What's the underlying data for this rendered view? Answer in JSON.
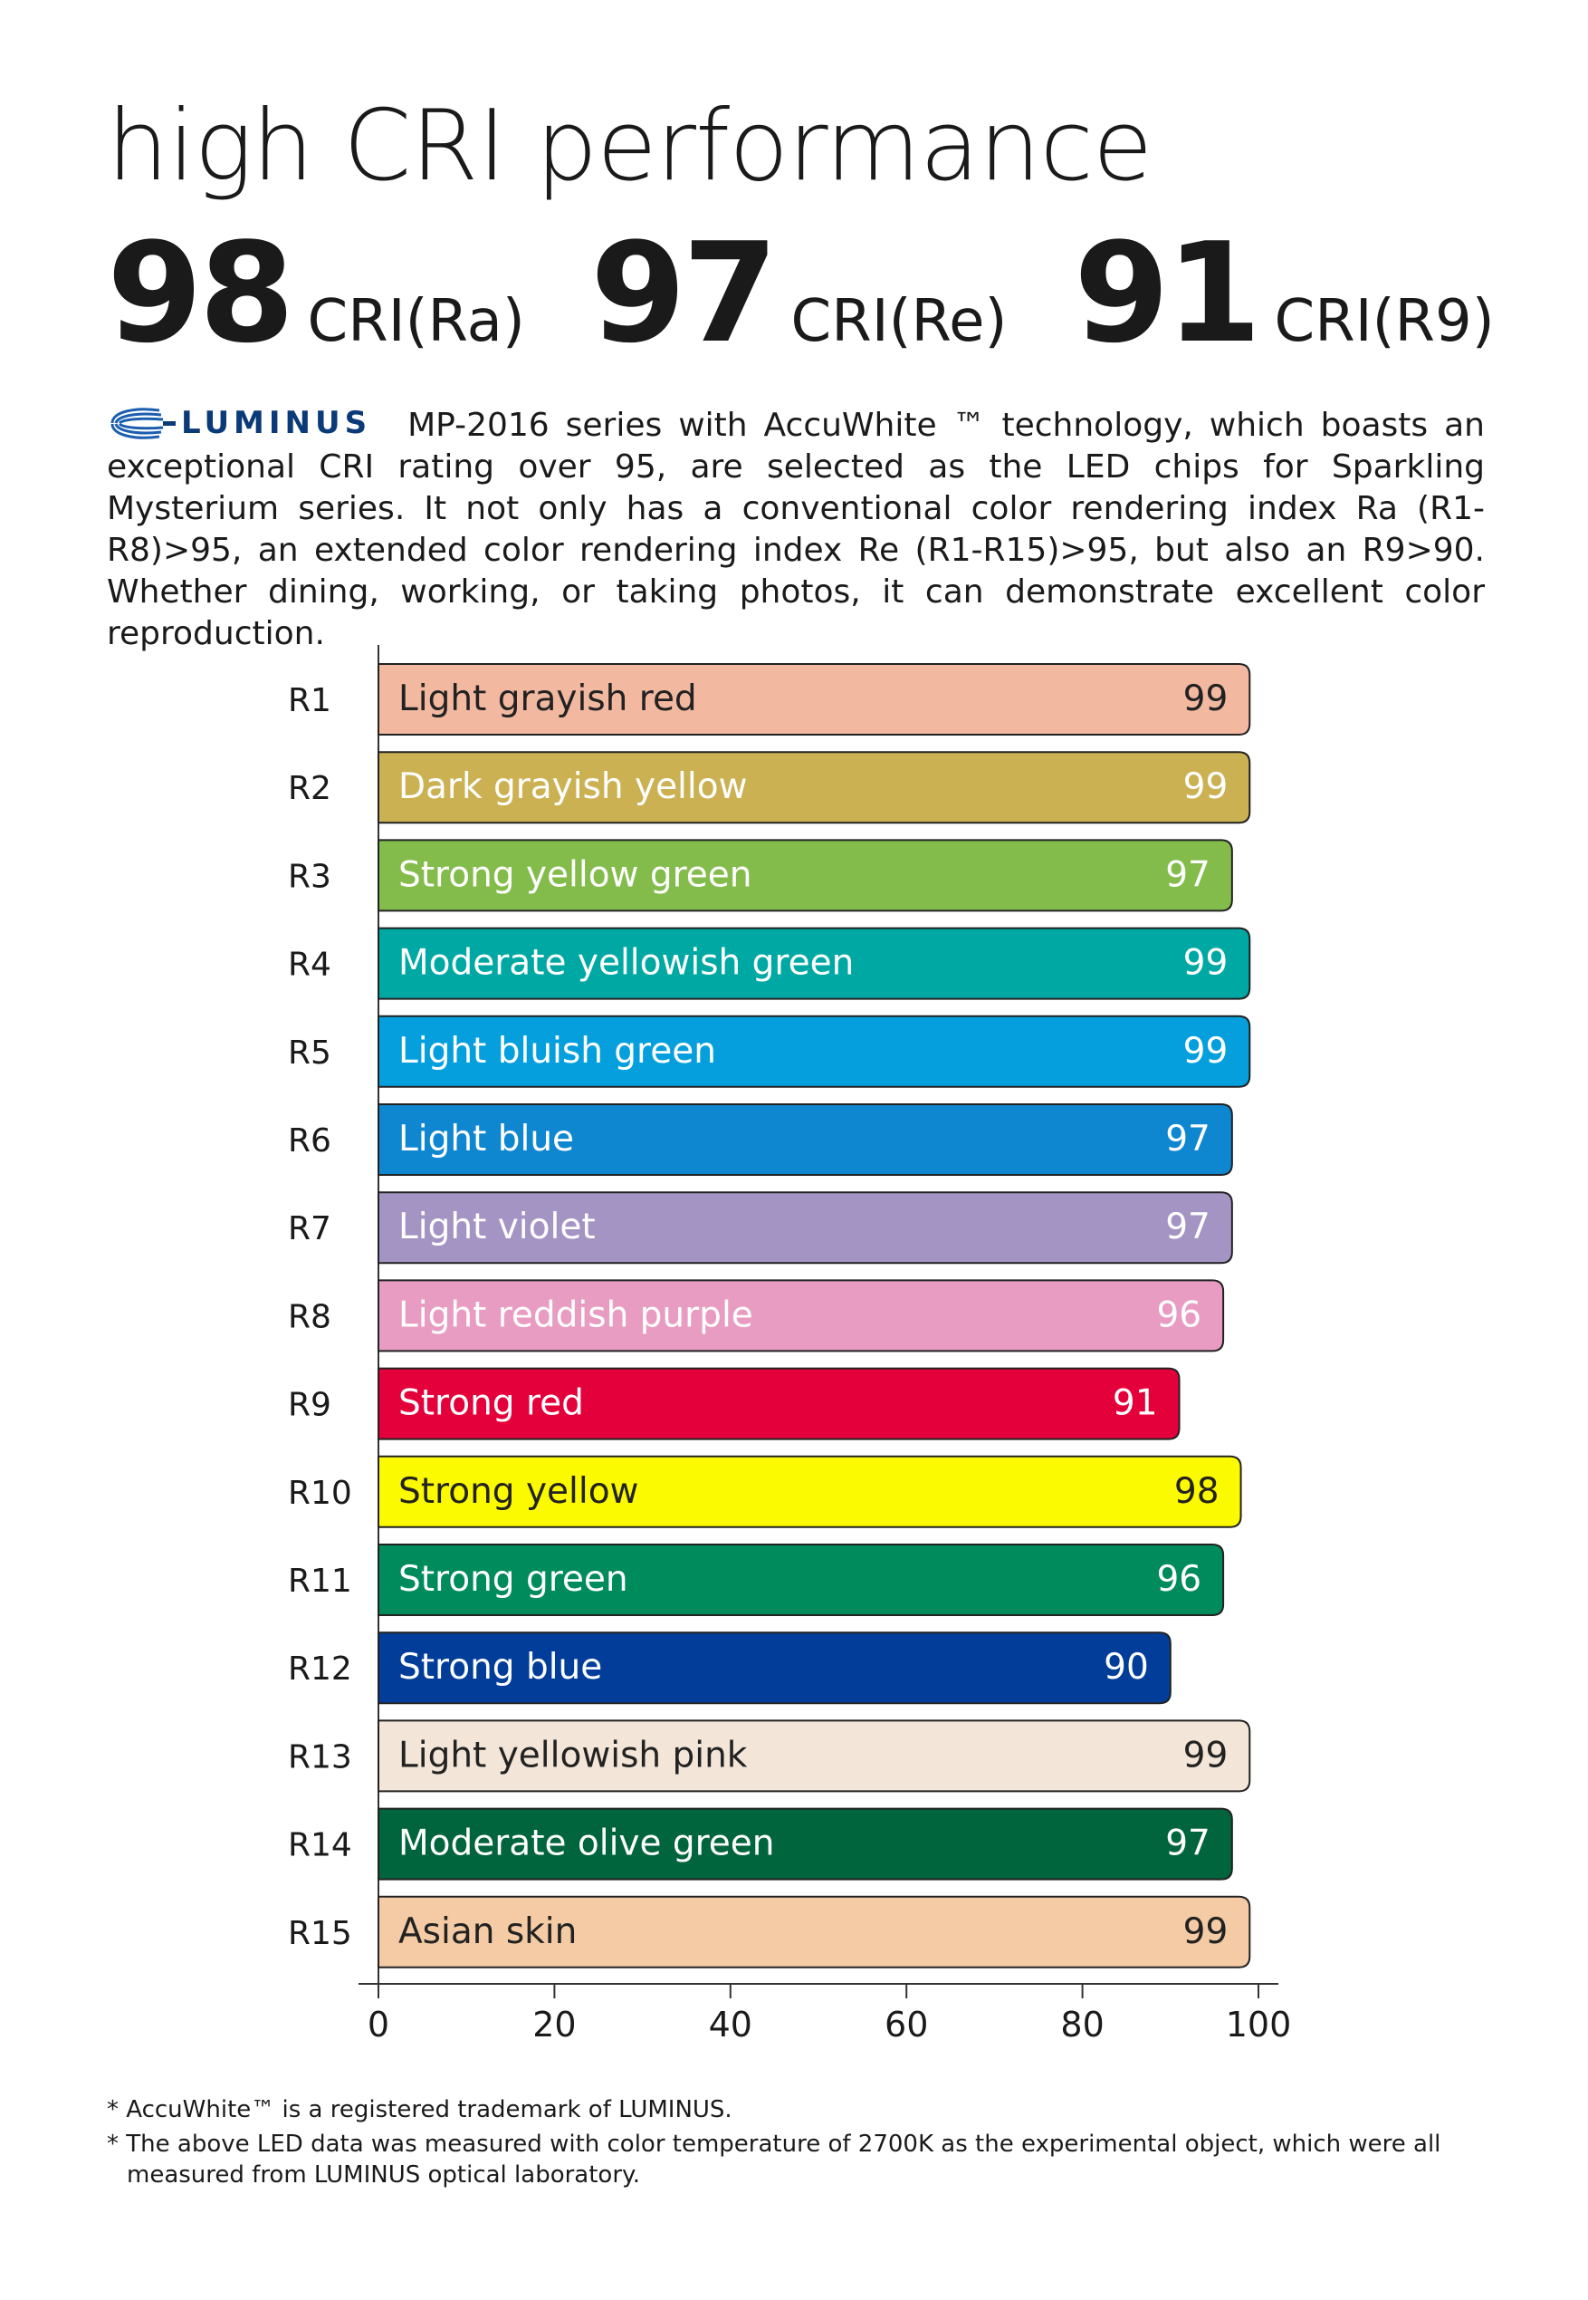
{
  "title": "high CRI performance",
  "stats": [
    {
      "value": "98",
      "label": "CRI(Ra)"
    },
    {
      "value": "97",
      "label": "CRI(Re)"
    },
    {
      "value": "91",
      "label": "CRI(R9)"
    }
  ],
  "logo_text": "LUMINUS",
  "intro_text": "MP-2016 series with AccuWhite ™ technology, which boasts an exceptional CRI rating over 95, are selected as the LED chips for Sparkling Mysterium series. It not only has a conventional color rendering index Ra (R1-R8)>95, an extended color rendering index Re (R1-R15)>95, but also an R9>90. Whether dining, working, or taking photos, it can demonstrate excellent color reproduction.",
  "chart_data": {
    "type": "bar",
    "orientation": "horizontal",
    "title": "",
    "xlabel": "",
    "ylabel": "",
    "xlim": [
      0,
      100
    ],
    "xticks": [
      0,
      20,
      40,
      60,
      80,
      100
    ],
    "categories": [
      "R1",
      "R2",
      "R3",
      "R4",
      "R5",
      "R6",
      "R7",
      "R8",
      "R9",
      "R10",
      "R11",
      "R12",
      "R13",
      "R14",
      "R15"
    ],
    "names": [
      "Light grayish red",
      "Dark grayish yellow",
      "Strong yellow green",
      "Moderate yellowish green",
      "Light bluish green",
      "Light blue",
      "Light violet",
      "Light reddish purple",
      "Strong red",
      "Strong yellow",
      "Strong green",
      "Strong blue",
      "Light yellowish pink",
      "Moderate olive green",
      "Asian skin"
    ],
    "values": [
      99,
      99,
      97,
      99,
      99,
      97,
      97,
      96,
      91,
      98,
      96,
      90,
      99,
      97,
      99
    ],
    "colors": [
      "#f2b8a0",
      "#ccb153",
      "#84bc4c",
      "#00a8a4",
      "#049fdc",
      "#0f86d0",
      "#a494c4",
      "#e89cc1",
      "#e4003a",
      "#fcfa00",
      "#008b5c",
      "#023e99",
      "#f3e6d8",
      "#00643c",
      "#f4cba5"
    ],
    "label_colors": [
      "#222222",
      "#ffffff",
      "#ffffff",
      "#ffffff",
      "#ffffff",
      "#ffffff",
      "#ffffff",
      "#ffffff",
      "#ffffff",
      "#222222",
      "#ffffff",
      "#ffffff",
      "#222222",
      "#ffffff",
      "#222222"
    ]
  },
  "footnotes": [
    "* AccuWhite™ is a registered trademark of LUMINUS.",
    "* The above LED data was measured with color temperature of 2700K as the experimental object, which were all measured from LUMINUS optical laboratory."
  ]
}
